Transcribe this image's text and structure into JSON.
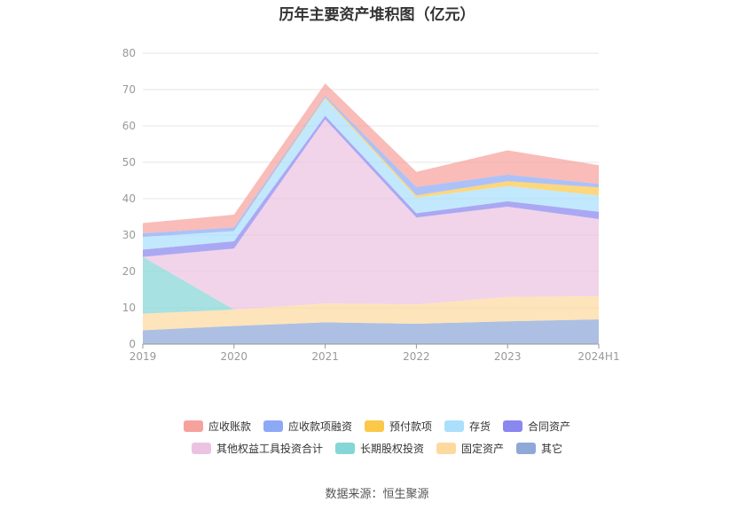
{
  "title": "历年主要资产堆积图（亿元）",
  "source": "数据来源：恒生聚源",
  "chart_data": {
    "type": "area",
    "stacked": true,
    "x": [
      "2019",
      "2020",
      "2021",
      "2022",
      "2023",
      "2024H1"
    ],
    "ylim": [
      0,
      80
    ],
    "yticks": [
      0,
      10,
      20,
      30,
      40,
      50,
      60,
      70,
      80
    ],
    "grid": true,
    "legend_position": "bottom",
    "series": [
      {
        "name": "其它",
        "color": "#8ea8d8",
        "values": [
          3.8,
          5.0,
          6.0,
          5.6,
          6.3,
          6.8
        ]
      },
      {
        "name": "固定资产",
        "color": "#fdd9a0",
        "values": [
          4.6,
          4.5,
          5.2,
          5.3,
          6.7,
          6.4
        ]
      },
      {
        "name": "长期股权投资",
        "color": "#85d6d6",
        "values": [
          15.6,
          0.0,
          0.0,
          0.0,
          0.0,
          0.0
        ]
      },
      {
        "name": "其他权益工具投资合计",
        "color": "#ebc3e1",
        "values": [
          0.0,
          16.8,
          50.6,
          23.9,
          24.8,
          21.2
        ]
      },
      {
        "name": "合同资产",
        "color": "#8a87ef",
        "values": [
          2.0,
          2.0,
          1.0,
          1.2,
          1.5,
          2.0
        ]
      },
      {
        "name": "存货",
        "color": "#abdffc",
        "values": [
          3.5,
          2.8,
          4.7,
          4.3,
          4.2,
          4.5
        ]
      },
      {
        "name": "预付款项",
        "color": "#fcc849",
        "values": [
          0.0,
          0.0,
          0.4,
          0.6,
          1.3,
          2.2
        ]
      },
      {
        "name": "应收款项融资",
        "color": "#8da9f6",
        "values": [
          1.0,
          1.0,
          0.5,
          2.3,
          1.8,
          1.0
        ]
      },
      {
        "name": "应收账款",
        "color": "#f6a29c",
        "values": [
          2.8,
          3.5,
          3.3,
          4.2,
          6.7,
          5.1
        ]
      }
    ],
    "legend_order": [
      "应收账款",
      "应收款项融资",
      "预付款项",
      "存货",
      "合同资产",
      "其他权益工具投资合计",
      "长期股权投资",
      "固定资产",
      "其它"
    ]
  }
}
